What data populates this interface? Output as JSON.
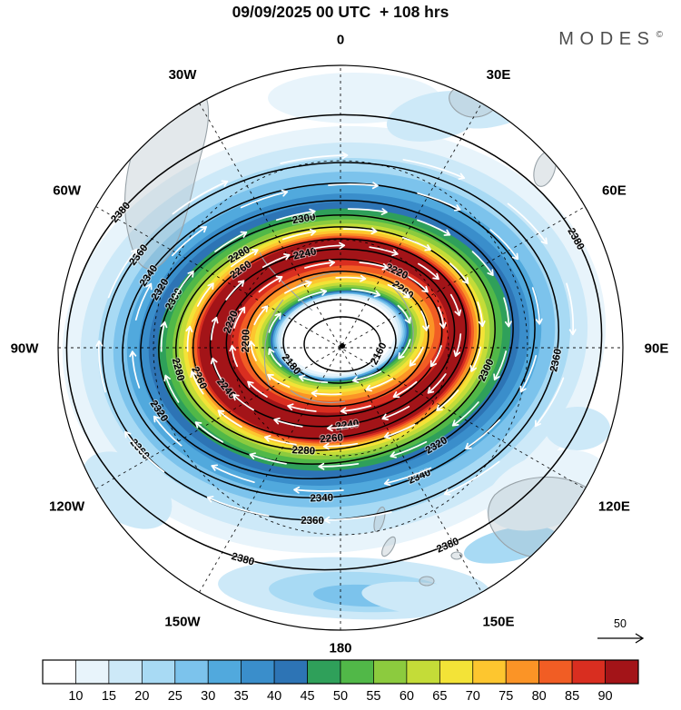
{
  "header": {
    "title": "09/09/2025 00 UTC  + 108 hrs",
    "brand": "MODES",
    "brand_sup": "©"
  },
  "chart_data": {
    "type": "heatmap",
    "subtype": "polar-stereographic weather map, shaded field with contours and wind arrows",
    "title": "09/09/2025 00 UTC + 108 hrs",
    "longitude_labels": [
      "0",
      "30E",
      "60E",
      "90E",
      "120E",
      "150E",
      "180",
      "150W",
      "120W",
      "90W",
      "60W",
      "30W"
    ],
    "contour_levels": [
      2380,
      2360,
      2340,
      2320,
      2300,
      2280,
      2260,
      2240,
      2220,
      2200,
      2180,
      2160
    ],
    "contour_interval": 20,
    "contour_color": "#000000",
    "wind_arrow_color": "#ffffff",
    "reference_arrow_label": "50",
    "pole_marker": true,
    "grid": "dashed graticule, 30-degree meridians, 2 latitude circles",
    "colorbar": {
      "position": "bottom",
      "tick_labels": [
        10,
        15,
        20,
        25,
        30,
        35,
        40,
        45,
        50,
        55,
        60,
        65,
        70,
        75,
        80,
        85,
        90
      ],
      "colors": [
        "#ffffff",
        "#e8f4fb",
        "#cde9f8",
        "#a8daf4",
        "#7cc3ec",
        "#51a9dd",
        "#3a8ecb",
        "#2d74b5",
        "#2fa05a",
        "#51b848",
        "#8ccb3e",
        "#c4dc38",
        "#f3e337",
        "#fdc62f",
        "#fb9426",
        "#f15d24",
        "#d92e20",
        "#a31418"
      ]
    }
  }
}
